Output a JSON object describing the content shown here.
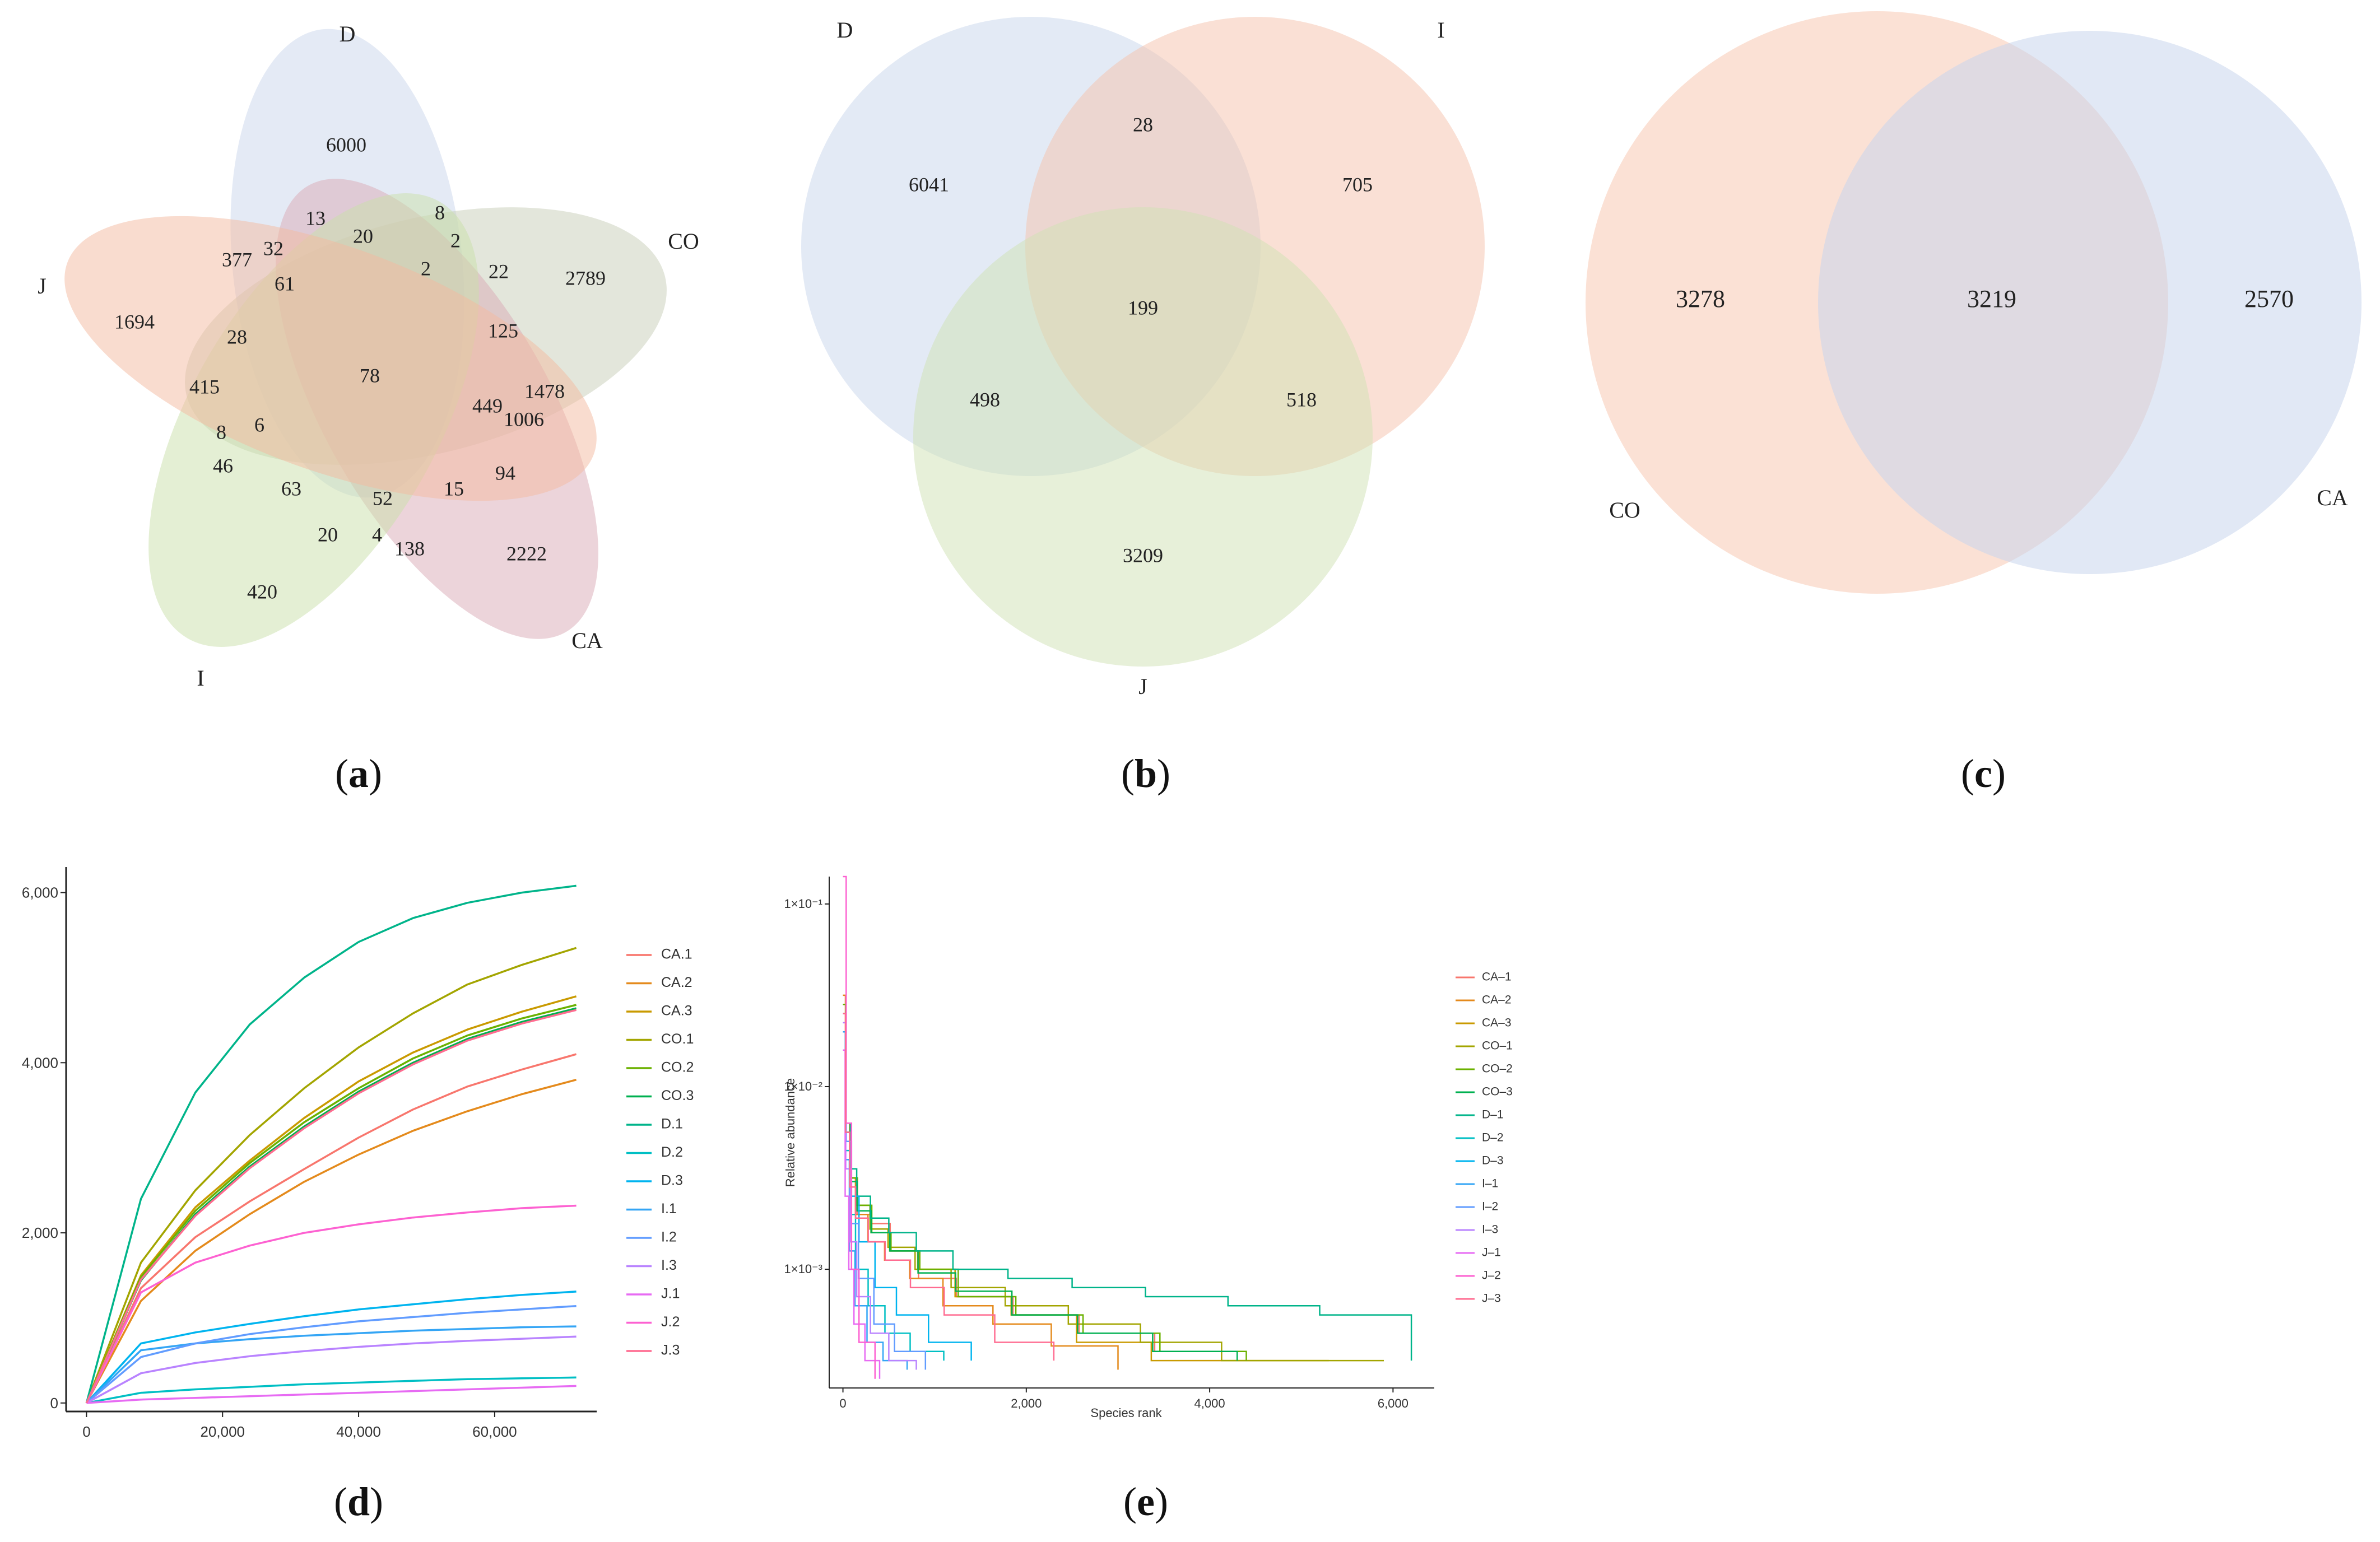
{
  "panel_labels": [
    {
      "open": "(",
      "letter": "a",
      "close": ")"
    },
    {
      "open": "(",
      "letter": "b",
      "close": ")"
    },
    {
      "open": "(",
      "letter": "c",
      "close": ")"
    },
    {
      "open": "(",
      "letter": "d",
      "close": ")"
    },
    {
      "open": "(",
      "letter": "e",
      "close": ")"
    }
  ],
  "chart_data": [
    {
      "type": "venn",
      "panel": "a",
      "sets": [
        {
          "name": "D",
          "color": "#c9d5ec"
        },
        {
          "name": "CO",
          "color": "#c8ceb8"
        },
        {
          "name": "CA",
          "color": "#d9a9b6"
        },
        {
          "name": "I",
          "color": "#c9dfaa"
        },
        {
          "name": "J",
          "color": "#f3b9a0"
        }
      ],
      "regions": [
        "6000",
        "13",
        "20",
        "8",
        "2",
        "377",
        "32",
        "2",
        "22",
        "2789",
        "61",
        "1694",
        "28",
        "125",
        "78",
        "415",
        "1478",
        "449",
        "6",
        "1006",
        "8",
        "46",
        "63",
        "52",
        "15",
        "94",
        "20",
        "4",
        "138",
        "2222",
        "420"
      ]
    },
    {
      "type": "venn",
      "panel": "b",
      "sets": [
        {
          "name": "D",
          "color": "#c8d5ec"
        },
        {
          "name": "I",
          "color": "#f6c2ab"
        },
        {
          "name": "J",
          "color": "#cfe2b4"
        }
      ],
      "regions": [
        "28",
        "6041",
        "705",
        "199",
        "498",
        "518",
        "3209"
      ]
    },
    {
      "type": "venn",
      "panel": "c",
      "sets": [
        {
          "name": "CO",
          "color": "#f7c9b2"
        },
        {
          "name": "CA",
          "color": "#c9d5ec"
        }
      ],
      "regions": [
        "3278",
        "3219",
        "2570"
      ]
    },
    {
      "type": "line",
      "panel": "d",
      "title": "",
      "xlabel": "",
      "ylabel": "",
      "xlim": [
        -3000,
        75000
      ],
      "ylim": [
        -100,
        6300
      ],
      "xticks": [
        "0",
        "20,000",
        "40,000",
        "60,000"
      ],
      "yticks": [
        "0",
        "2,000",
        "4,000",
        "6,000"
      ],
      "x": [
        0,
        8000,
        16000,
        24000,
        32000,
        40000,
        48000,
        56000,
        64000,
        72000
      ],
      "series": [
        {
          "name": "CA.1",
          "color": "#f8766d",
          "values": [
            0,
            1350,
            1950,
            2370,
            2750,
            3120,
            3450,
            3720,
            3920,
            4100
          ]
        },
        {
          "name": "CA.2",
          "color": "#e48a1c",
          "values": [
            0,
            1200,
            1790,
            2220,
            2600,
            2920,
            3200,
            3430,
            3630,
            3800
          ]
        },
        {
          "name": "CA.3",
          "color": "#c99a00",
          "values": [
            0,
            1500,
            2300,
            2850,
            3350,
            3780,
            4120,
            4390,
            4600,
            4780
          ]
        },
        {
          "name": "CO.1",
          "color": "#a3a500",
          "values": [
            0,
            1650,
            2500,
            3150,
            3700,
            4180,
            4580,
            4920,
            5150,
            5350
          ]
        },
        {
          "name": "CO.2",
          "color": "#6bb100",
          "values": [
            0,
            1480,
            2260,
            2820,
            3300,
            3700,
            4050,
            4320,
            4520,
            4680
          ]
        },
        {
          "name": "CO.3",
          "color": "#00b050",
          "values": [
            0,
            1440,
            2220,
            2780,
            3250,
            3660,
            4000,
            4280,
            4480,
            4640
          ]
        },
        {
          "name": "D.1",
          "color": "#00b48a",
          "values": [
            0,
            2400,
            3650,
            4450,
            5000,
            5420,
            5700,
            5880,
            6000,
            6080
          ]
        },
        {
          "name": "D.2",
          "color": "#00bfc4",
          "values": [
            0,
            120,
            160,
            190,
            220,
            240,
            260,
            280,
            290,
            300
          ]
        },
        {
          "name": "D.3",
          "color": "#00b4ef",
          "values": [
            0,
            700,
            830,
            930,
            1020,
            1100,
            1160,
            1220,
            1270,
            1310
          ]
        },
        {
          "name": "I.1",
          "color": "#34a5f5",
          "values": [
            0,
            620,
            700,
            750,
            790,
            820,
            850,
            870,
            890,
            900
          ]
        },
        {
          "name": "I.2",
          "color": "#619cff",
          "values": [
            0,
            540,
            700,
            810,
            890,
            960,
            1010,
            1060,
            1100,
            1140
          ]
        },
        {
          "name": "I.3",
          "color": "#b983ff",
          "values": [
            0,
            350,
            470,
            550,
            610,
            660,
            700,
            730,
            755,
            780
          ]
        },
        {
          "name": "J.1",
          "color": "#e76bf3",
          "values": [
            0,
            40,
            60,
            80,
            100,
            120,
            140,
            160,
            180,
            200
          ]
        },
        {
          "name": "J.2",
          "color": "#fd61d1",
          "values": [
            0,
            1300,
            1650,
            1850,
            2000,
            2100,
            2180,
            2240,
            2290,
            2320
          ]
        },
        {
          "name": "J.3",
          "color": "#ff6c91",
          "values": [
            0,
            1450,
            2200,
            2760,
            3230,
            3640,
            3980,
            4260,
            4460,
            4620
          ]
        }
      ]
    },
    {
      "type": "line",
      "panel": "e",
      "title": "",
      "xlabel": "Species rank",
      "ylabel": "Relative abundance",
      "xlim": [
        -150,
        6450
      ],
      "log_ylim": [
        -3.65,
        -0.85
      ],
      "xticks": [
        "0",
        "2,000",
        "4,000",
        "6,000"
      ],
      "yticks": [
        "1×10⁻³",
        "1×10⁻²",
        "1×10⁻¹"
      ],
      "rank_points": [
        0,
        30,
        80,
        150,
        300,
        500,
        800,
        1200,
        1800,
        2500,
        3300,
        4200,
        5200,
        6000,
        6200
      ],
      "series": [
        {
          "name": "CA–1",
          "color": "#f8766d",
          "max_rank": 3400,
          "log_values": [
            -1.6,
            -2.25,
            -2.55,
            -2.7,
            -2.75,
            -2.9,
            -3.05,
            -3.15,
            -3.25,
            -3.35,
            -3.45
          ]
        },
        {
          "name": "CA–2",
          "color": "#e48a1c",
          "max_rank": 3000,
          "log_values": [
            -1.5,
            -2.2,
            -2.5,
            -2.7,
            -2.85,
            -2.95,
            -3.05,
            -3.2,
            -3.3,
            -3.42,
            -3.55
          ]
        },
        {
          "name": "CA–3",
          "color": "#c99a00",
          "max_rank": 5300,
          "log_values": [
            -1.55,
            -2.2,
            -2.5,
            -2.65,
            -2.8,
            -2.9,
            -3.0,
            -3.15,
            -3.25,
            -3.4,
            -3.5,
            -3.5,
            -3.5
          ]
        },
        {
          "name": "CO–1",
          "color": "#a3a500",
          "max_rank": 5900,
          "log_values": [
            -1.6,
            -2.2,
            -2.5,
            -2.65,
            -2.78,
            -2.88,
            -3.0,
            -3.1,
            -3.2,
            -3.3,
            -3.4,
            -3.5,
            -3.5,
            -3.5
          ]
        },
        {
          "name": "CO–2",
          "color": "#6bb100",
          "max_rank": 4400,
          "log_values": [
            -1.55,
            -2.2,
            -2.5,
            -2.65,
            -2.8,
            -2.9,
            -3.0,
            -3.15,
            -3.25,
            -3.35,
            -3.45,
            -3.5
          ]
        },
        {
          "name": "CO–3",
          "color": "#00b050",
          "max_rank": 4300,
          "log_values": [
            -1.6,
            -2.25,
            -2.52,
            -2.68,
            -2.8,
            -2.9,
            -3.02,
            -3.12,
            -3.25,
            -3.35,
            -3.45,
            -3.5
          ]
        },
        {
          "name": "D–1",
          "color": "#00b48a",
          "max_rank": 6200,
          "log_values": [
            -1.7,
            -2.2,
            -2.45,
            -2.6,
            -2.72,
            -2.8,
            -2.9,
            -3.0,
            -3.05,
            -3.1,
            -3.15,
            -3.2,
            -3.25,
            -3.25,
            -3.5
          ]
        },
        {
          "name": "D–2",
          "color": "#00bfc4",
          "max_rank": 1100,
          "log_values": [
            -1.7,
            -2.35,
            -2.7,
            -3.0,
            -3.2,
            -3.35,
            -3.45,
            -3.5
          ]
        },
        {
          "name": "D–3",
          "color": "#00b4ef",
          "max_rank": 1400,
          "log_values": [
            -1.6,
            -2.3,
            -2.6,
            -2.85,
            -3.1,
            -3.25,
            -3.4,
            -3.5
          ]
        },
        {
          "name": "I–1",
          "color": "#34a5f5",
          "max_rank": 700,
          "log_values": [
            -1.7,
            -2.4,
            -2.9,
            -3.2,
            -3.4,
            -3.5,
            -3.55
          ]
        },
        {
          "name": "I–2",
          "color": "#619cff",
          "max_rank": 900,
          "log_values": [
            -1.6,
            -2.3,
            -2.75,
            -3.05,
            -3.3,
            -3.45,
            -3.55
          ]
        },
        {
          "name": "I–3",
          "color": "#b983ff",
          "max_rank": 800,
          "log_values": [
            -1.65,
            -2.45,
            -2.85,
            -3.15,
            -3.35,
            -3.5,
            -3.55
          ]
        },
        {
          "name": "J–1",
          "color": "#e76bf3",
          "max_rank": 400,
          "log_values": [
            -1.8,
            -2.6,
            -3.0,
            -3.3,
            -3.5,
            -3.6
          ]
        },
        {
          "name": "J–2",
          "color": "#fd61d1",
          "max_rank": 350,
          "log_values": [
            -0.85,
            -2.2,
            -3.0,
            -3.4,
            -3.6
          ]
        },
        {
          "name": "J–3",
          "color": "#ff6c91",
          "max_rank": 2300,
          "log_values": [
            -1.6,
            -2.25,
            -2.55,
            -2.72,
            -2.85,
            -2.95,
            -3.1,
            -3.25,
            -3.4,
            -3.5
          ]
        }
      ]
    }
  ]
}
